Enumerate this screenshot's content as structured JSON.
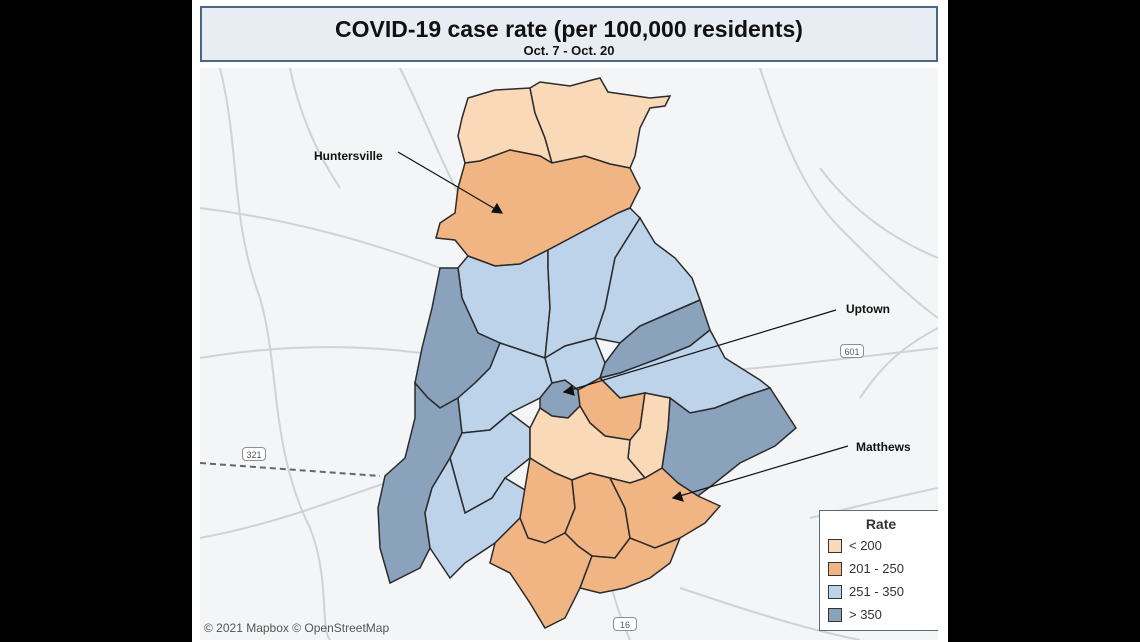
{
  "title": "COVID-19 case rate (per 100,000 residents)",
  "subtitle": "Oct. 7 - Oct. 20",
  "colors": {
    "under_200": "#fad9b8",
    "r201_250": "#f0b582",
    "r251_350": "#bcd3ea",
    "over_350": "#8aa2bc",
    "outline": "#2b2b2b",
    "roads": "#c8cbd0"
  },
  "callouts": [
    {
      "label": "Huntersville"
    },
    {
      "label": "Uptown"
    },
    {
      "label": "Matthews"
    }
  ],
  "shields": [
    "601",
    "321",
    "16"
  ],
  "legend": {
    "title": "Rate",
    "items": [
      {
        "label": "< 200",
        "color": "#fad9b8"
      },
      {
        "label": "201 - 250",
        "color": "#f0b582"
      },
      {
        "label": "251 - 350",
        "color": "#bcd3ea"
      },
      {
        "label": "> 350",
        "color": "#8aa2bc"
      }
    ]
  },
  "attribution": "© 2021 Mapbox  © OpenStreetMap"
}
